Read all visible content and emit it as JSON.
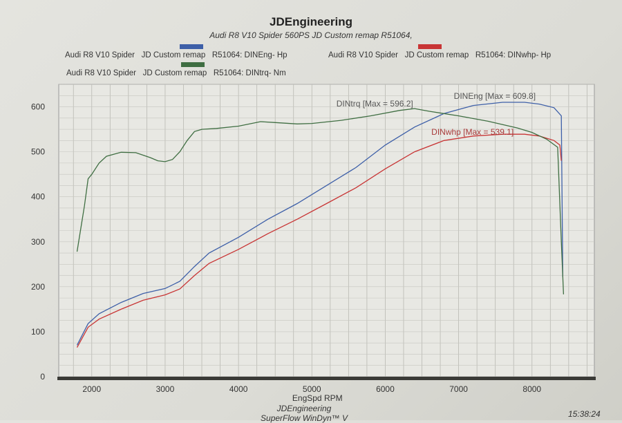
{
  "header": {
    "title": "JDEngineering",
    "subtitle": "Audi R8 V10 Spider 560PS  JD Custom remap   R51064,"
  },
  "legend": [
    {
      "vehicle": "Audi R8 V10 Spider",
      "tune": "JD Custom remap",
      "channel": "R51064: DINEng- Hp",
      "color": "#3d5fa8"
    },
    {
      "vehicle": "Audi R8 V10 Spider",
      "tune": "JD Custom remap",
      "channel": "R51064: DINwhp-  Hp",
      "color": "#c83434"
    },
    {
      "vehicle": "Audi R8 V10 Spider",
      "tune": "JD Custom remap",
      "channel": "R51064: DINtrq- Nm",
      "color": "#3f6e42"
    }
  ],
  "footer": {
    "line1": "JDEngineering",
    "line2": "SuperFlow WinDyn™ V",
    "time": "15:38:24"
  },
  "chart_data": {
    "type": "line",
    "title": "JDEngineering",
    "xlabel": "EngSpd  RPM",
    "ylabel": "",
    "xlim": [
      1550,
      8850
    ],
    "ylim": [
      0,
      650
    ],
    "xticks": [
      2000,
      3000,
      4000,
      5000,
      6000,
      7000,
      8000
    ],
    "yticks": [
      0,
      100,
      200,
      300,
      400,
      500,
      600
    ],
    "grid": true,
    "legend_placement": "top",
    "annotations": [
      {
        "text": "DINtrq [Max = 596.2]",
        "series": "DINtrq"
      },
      {
        "text": "DINEng [Max = 609.8]",
        "series": "DINEng"
      },
      {
        "text": "DINwhp [Max = 539.1]",
        "series": "DINwhp"
      }
    ],
    "series": [
      {
        "name": "R51064: DINEng- Hp",
        "color": "#3d5fa8",
        "x": [
          1800,
          1950,
          2100,
          2400,
          2700,
          3000,
          3200,
          3400,
          3600,
          4000,
          4400,
          4800,
          5200,
          5600,
          6000,
          6400,
          6800,
          7200,
          7600,
          7900,
          8100,
          8300,
          8400,
          8420
        ],
        "y": [
          70,
          118,
          140,
          165,
          185,
          196,
          212,
          245,
          275,
          310,
          350,
          385,
          425,
          465,
          515,
          555,
          585,
          603,
          610,
          610,
          606,
          598,
          580,
          222
        ]
      },
      {
        "name": "R51064: DINwhp-  Hp",
        "color": "#c83434",
        "x": [
          1800,
          1950,
          2100,
          2400,
          2700,
          3000,
          3200,
          3400,
          3600,
          4000,
          4400,
          4800,
          5200,
          5600,
          6000,
          6400,
          6800,
          7200,
          7600,
          7900,
          8100,
          8300,
          8380,
          8400
        ],
        "y": [
          65,
          110,
          128,
          150,
          170,
          182,
          195,
          225,
          252,
          283,
          318,
          350,
          385,
          420,
          462,
          500,
          525,
          535,
          539,
          539,
          535,
          525,
          515,
          480
        ]
      },
      {
        "name": "R51064: DINtrq- Nm",
        "color": "#3f6e42",
        "x": [
          1800,
          1900,
          1950,
          2000,
          2100,
          2200,
          2400,
          2600,
          2800,
          2900,
          3000,
          3100,
          3200,
          3300,
          3400,
          3500,
          3700,
          4000,
          4300,
          4500,
          4800,
          5000,
          5400,
          5800,
          6200,
          6400,
          6600,
          7000,
          7400,
          7800,
          8000,
          8200,
          8350,
          8400,
          8430
        ],
        "y": [
          278,
          380,
          440,
          450,
          475,
          490,
          499,
          498,
          487,
          480,
          478,
          483,
          500,
          525,
          545,
          550,
          552,
          557,
          567,
          565,
          562,
          563,
          570,
          580,
          592,
          596,
          590,
          580,
          568,
          553,
          543,
          528,
          510,
          300,
          183
        ]
      }
    ]
  }
}
